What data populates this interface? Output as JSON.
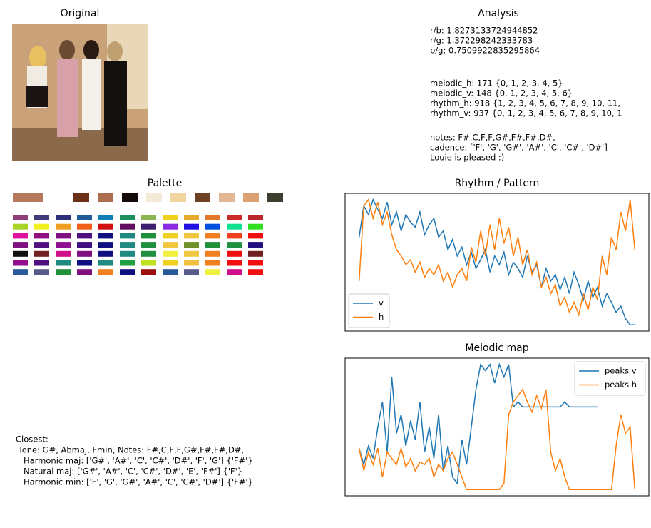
{
  "original": {
    "title": "Original"
  },
  "analysis": {
    "title": "Analysis",
    "groups": [
      [
        "r/b: 1.8273133724944852",
        "r/g: 1.372298242333783",
        "b/g: 0.7509922835295864"
      ],
      [
        "melodic_h: 171 {0, 1, 2, 3, 4, 5}",
        "melodic_v: 148 {0, 1, 2, 3, 4, 5, 6}",
        "rhythm_h: 918 {1, 2, 3, 4, 5, 6, 7, 8, 9, 10, 11,",
        "rhythm_v: 937 {0, 1, 2, 3, 4, 5, 6, 7, 8, 9, 10, 1"
      ],
      [
        "notes: F#,C,F,F,G#,F#,F#,D#,",
        "cadence: ['F', 'G', 'G#', 'A#', 'C', 'C#', 'D#']",
        "Louie is pleased :)"
      ]
    ]
  },
  "palette": {
    "title": "Palette",
    "top": [
      "#b5785a",
      "#6b3118",
      "#ad6e4f",
      "#130a09",
      "#f3ead8",
      "#f2d4a0",
      "#6e4124",
      "#e2b791",
      "#dba073",
      "#3b3f2d"
    ],
    "grid": [
      [
        "#8e3f7a",
        "#3f3a7a",
        "#2e2f7b",
        "#1f5b9a",
        "#0f7fb5",
        "#1e8f5e",
        "#8bb64f",
        "#f0d120",
        "#e8aa2a",
        "#e4762a",
        "#cc2a2a",
        "#b82828"
      ],
      [
        "#a8d428",
        "#f2f020",
        "#f0a020",
        "#f06018",
        "#d01010",
        "#600f60",
        "#3e1f6e",
        "#8a2be2",
        "#2010e0",
        "#0050e0",
        "#10e090",
        "#30e020"
      ],
      [
        "#e0109a",
        "#901080",
        "#801080",
        "#501080",
        "#101080",
        "#208a80",
        "#20903a",
        "#f0d020",
        "#f0c840",
        "#f08020",
        "#f04020",
        "#f01010"
      ],
      [
        "#801080",
        "#501080",
        "#901090",
        "#401080",
        "#101080",
        "#208a80",
        "#209040",
        "#f0c840",
        "#70902a",
        "#20903a",
        "#209040",
        "#201080"
      ],
      [
        "#101010",
        "#702020",
        "#d0108a",
        "#801080",
        "#101080",
        "#208a80",
        "#209040",
        "#f0f040",
        "#f0c840",
        "#f08020",
        "#f01010",
        "#702020"
      ],
      [
        "#901090",
        "#501080",
        "#208a80",
        "#101080",
        "#208a80",
        "#20a040",
        "#c0e020",
        "#f0d020",
        "#f0c040",
        "#f08020",
        "#f01010",
        "#f01010"
      ],
      [
        "#2a5a9a",
        "#5a5a8a",
        "#20903a",
        "#801080",
        "#f08020",
        "#101080",
        "#9a1010",
        "#2a5a9a",
        "#5a5a8a",
        "#f0f040",
        "#d0108a",
        "#f01010"
      ]
    ]
  },
  "closest": {
    "lines": [
      "Closest:",
      " Tone: G#, Abmaj, Fmin, Notes: F#,C,F,F,G#,F#,F#,D#,",
      "   Harmonic maj: ['G#', 'A#', 'C', 'C#', 'D#', 'F', 'G'] {'F#'}",
      "   Natural maj: ['G#', 'A#', 'C', 'C#', 'D#', 'E', 'F#'] {'F'}",
      "   Harmonic min: ['F', 'G', 'G#', 'A#', 'C', 'C#', 'D#'] {'F#'}"
    ]
  },
  "chart_data": [
    {
      "type": "line",
      "title": "Rhythm / Pattern",
      "legend": "lower left",
      "xlim": [
        -3,
        62
      ],
      "ylim": [
        -5,
        105
      ],
      "series": [
        {
          "name": "v",
          "color": "#1f77b4",
          "values": [
            70,
            95,
            88,
            100,
            92,
            85,
            98,
            80,
            90,
            75,
            88,
            82,
            78,
            90,
            72,
            80,
            85,
            70,
            75,
            60,
            68,
            55,
            62,
            48,
            58,
            45,
            52,
            60,
            42,
            55,
            48,
            58,
            40,
            50,
            45,
            38,
            55,
            42,
            48,
            30,
            45,
            35,
            40,
            28,
            38,
            25,
            42,
            32,
            20,
            35,
            22,
            30,
            15,
            25,
            18,
            10,
            15,
            5,
            0,
            0
          ]
        },
        {
          "name": "h",
          "color": "#ff7f0e",
          "values": [
            35,
            95,
            100,
            85,
            98,
            80,
            90,
            72,
            60,
            55,
            48,
            52,
            42,
            50,
            38,
            45,
            40,
            48,
            35,
            42,
            30,
            40,
            45,
            35,
            62,
            50,
            75,
            55,
            80,
            60,
            85,
            65,
            78,
            55,
            70,
            48,
            60,
            40,
            50,
            30,
            38,
            25,
            32,
            15,
            22,
            10,
            18,
            8,
            25,
            12,
            30,
            20,
            55,
            40,
            70,
            60,
            90,
            75,
            100,
            60
          ]
        }
      ]
    },
    {
      "type": "line",
      "title": "Melodic map",
      "legend": "upper right",
      "xlim": [
        -3,
        62
      ],
      "ylim": [
        -5,
        105
      ],
      "series": [
        {
          "name": "peaks v",
          "color": "#1f77b4",
          "values": [
            33,
            20,
            35,
            25,
            50,
            70,
            30,
            90,
            45,
            60,
            35,
            55,
            40,
            70,
            30,
            50,
            25,
            60,
            15,
            35,
            10,
            5,
            40,
            20,
            50,
            80,
            100,
            95,
            100,
            85,
            100,
            90,
            100,
            66,
            70,
            66,
            66,
            66,
            66,
            66,
            66,
            66,
            66,
            66,
            70,
            66,
            66,
            66,
            66,
            66,
            66,
            66
          ]
        },
        {
          "name": "peaks h",
          "color": "#ff7f0e",
          "values": [
            33,
            15,
            30,
            20,
            33,
            10,
            30,
            25,
            20,
            33,
            18,
            25,
            15,
            22,
            20,
            25,
            10,
            20,
            15,
            25,
            30,
            20,
            10,
            0,
            0,
            0,
            0,
            0,
            0,
            0,
            0,
            5,
            60,
            70,
            75,
            80,
            70,
            62,
            75,
            65,
            80,
            30,
            15,
            25,
            10,
            0,
            0,
            0,
            0,
            0,
            0,
            0,
            0,
            0,
            0,
            35,
            60,
            45,
            50,
            0
          ]
        }
      ]
    }
  ]
}
